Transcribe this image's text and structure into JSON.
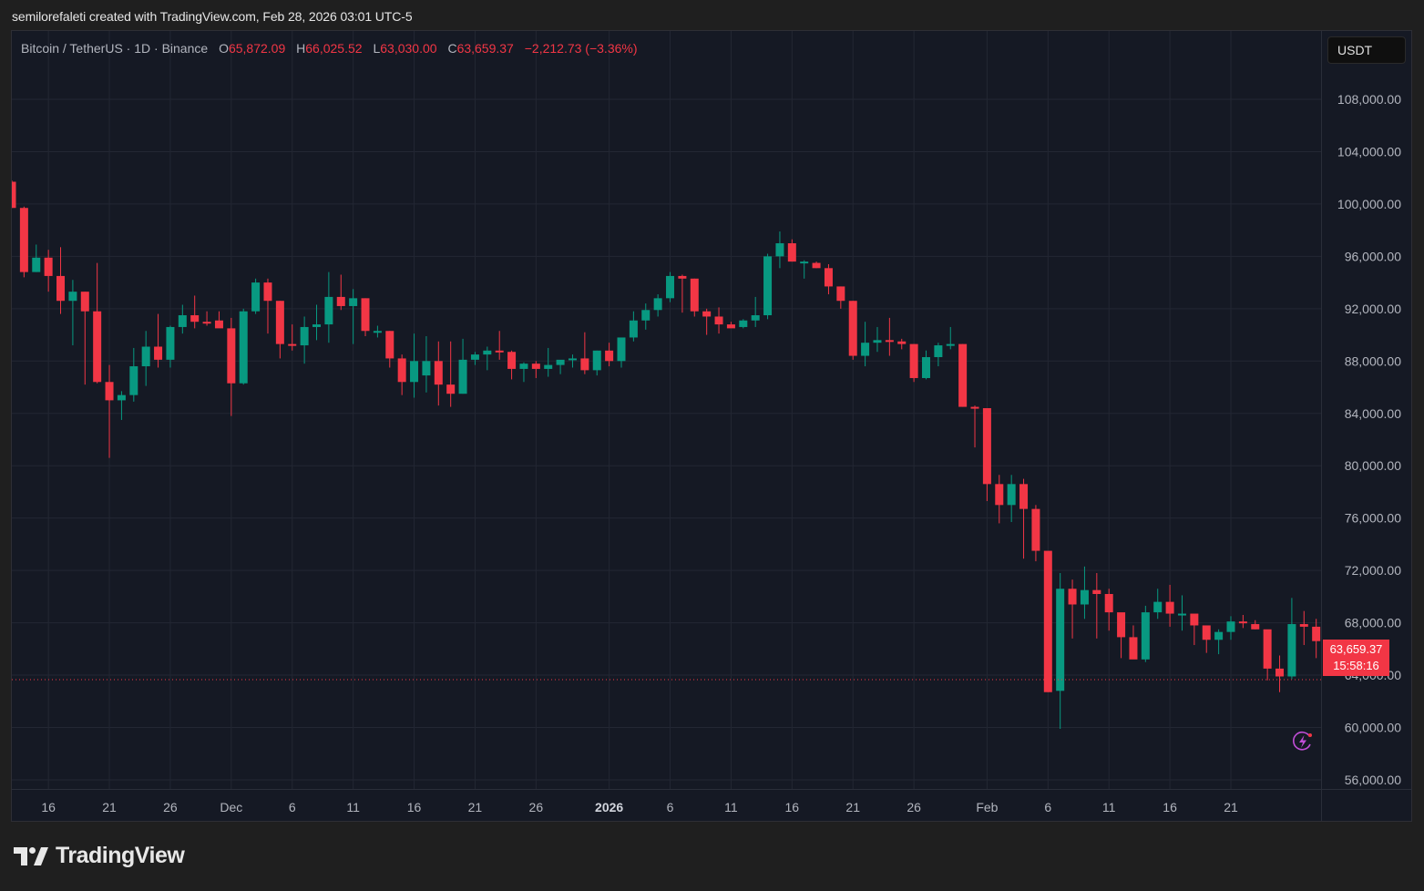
{
  "caption": "semilorefaleti created with TradingView.com, Feb 28, 2026 03:01 UTC-5",
  "legend": {
    "symbol": "Bitcoin / TetherUS · 1D · Binance",
    "o_key": "O",
    "o_val": "65,872.09",
    "h_key": "H",
    "h_val": "66,025.52",
    "l_key": "L",
    "l_val": "63,030.00",
    "c_key": "C",
    "c_val": "63,659.37",
    "change": "−2,212.73 (−3.36%)"
  },
  "unit_button": "USDT",
  "last_price": {
    "price": "63,659.37",
    "countdown": "15:58:16",
    "color": "#f23645"
  },
  "brand": {
    "name": "TradingView"
  },
  "colors": {
    "up": "#089981",
    "down": "#f23645",
    "background": "#151924",
    "grid": "#232733",
    "axis_text": "#b2b5be"
  },
  "chart_data": {
    "type": "candlestick",
    "title": "Bitcoin / TetherUS · 1D · Binance",
    "xlabel": "",
    "ylabel": "USDT",
    "ylim": [
      54500,
      111000
    ],
    "grid": true,
    "y_ticks": [
      56000,
      60000,
      64000,
      68000,
      72000,
      76000,
      80000,
      84000,
      88000,
      92000,
      96000,
      100000,
      104000,
      108000
    ],
    "y_tick_labels": [
      "56,000.00",
      "60,000.00",
      "64,000.00",
      "68,000.00",
      "72,000.00",
      "76,000.00",
      "80,000.00",
      "84,000.00",
      "88,000.00",
      "92,000.00",
      "96,000.00",
      "100,000.00",
      "104,000.00",
      "108,000.00"
    ],
    "x_ticks": [
      {
        "label": "16",
        "index": 3
      },
      {
        "label": "21",
        "index": 8
      },
      {
        "label": "26",
        "index": 13
      },
      {
        "label": "Dec",
        "index": 18
      },
      {
        "label": "6",
        "index": 23
      },
      {
        "label": "11",
        "index": 28
      },
      {
        "label": "16",
        "index": 33
      },
      {
        "label": "21",
        "index": 38
      },
      {
        "label": "26",
        "index": 43
      },
      {
        "label": "2026",
        "index": 49,
        "bold": true
      },
      {
        "label": "6",
        "index": 54
      },
      {
        "label": "11",
        "index": 59
      },
      {
        "label": "16",
        "index": 64
      },
      {
        "label": "21",
        "index": 69
      },
      {
        "label": "26",
        "index": 74
      },
      {
        "label": "Feb",
        "index": 80
      },
      {
        "label": "6",
        "index": 85
      },
      {
        "label": "11",
        "index": 90
      },
      {
        "label": "16",
        "index": 95
      },
      {
        "label": "21",
        "index": 100
      }
    ],
    "start_date": "Nov 13",
    "end_date": "Feb 28",
    "ohlc": [
      [
        101700,
        101800,
        99700,
        99700
      ],
      [
        99700,
        99800,
        94400,
        94800
      ],
      [
        94800,
        96900,
        94800,
        95900
      ],
      [
        95900,
        96500,
        93300,
        94500
      ],
      [
        94500,
        96700,
        91600,
        92600
      ],
      [
        92600,
        94200,
        89200,
        93300
      ],
      [
        93300,
        93300,
        86200,
        91800
      ],
      [
        91800,
        95500,
        86300,
        86400
      ],
      [
        86400,
        87700,
        80600,
        85000
      ],
      [
        85000,
        85700,
        83500,
        85400
      ],
      [
        85400,
        89000,
        84900,
        87600
      ],
      [
        87600,
        90300,
        86100,
        89100
      ],
      [
        89100,
        91600,
        87500,
        88100
      ],
      [
        88100,
        90700,
        87500,
        90600
      ],
      [
        90600,
        92300,
        90100,
        91500
      ],
      [
        91500,
        93000,
        90500,
        91000
      ],
      [
        91000,
        91800,
        90700,
        90900
      ],
      [
        91100,
        91800,
        90600,
        90500
      ],
      [
        90500,
        91300,
        83800,
        86300
      ],
      [
        86300,
        92000,
        86200,
        91800
      ],
      [
        91800,
        94300,
        91600,
        94000
      ],
      [
        94000,
        94300,
        90100,
        92600
      ],
      [
        92600,
        92600,
        88200,
        89300
      ],
      [
        89300,
        90800,
        88800,
        89200
      ],
      [
        89200,
        91400,
        87800,
        90600
      ],
      [
        90600,
        92300,
        89600,
        90800
      ],
      [
        90800,
        94800,
        89400,
        92900
      ],
      [
        92900,
        94600,
        91900,
        92200
      ],
      [
        92200,
        93500,
        89300,
        92800
      ],
      [
        92800,
        92800,
        89900,
        90300
      ],
      [
        90300,
        90700,
        89800,
        90300
      ],
      [
        90300,
        90300,
        87500,
        88200
      ],
      [
        88200,
        88500,
        85400,
        86400
      ],
      [
        86400,
        90100,
        85200,
        88000
      ],
      [
        86900,
        89900,
        85600,
        88000
      ],
      [
        88000,
        89500,
        84600,
        86200
      ],
      [
        86200,
        89500,
        84500,
        85500
      ],
      [
        85500,
        89700,
        85500,
        88100
      ],
      [
        88100,
        88700,
        87700,
        88500
      ],
      [
        88500,
        89100,
        87300,
        88800
      ],
      [
        88800,
        90300,
        88100,
        88700
      ],
      [
        88700,
        88800,
        86600,
        87400
      ],
      [
        87400,
        87900,
        86400,
        87800
      ],
      [
        87800,
        88000,
        86700,
        87400
      ],
      [
        87400,
        89000,
        86800,
        87700
      ],
      [
        87700,
        88000,
        87000,
        88100
      ],
      [
        88100,
        88500,
        87500,
        88200
      ],
      [
        88200,
        90200,
        87000,
        87300
      ],
      [
        87300,
        88800,
        86900,
        88800
      ],
      [
        88800,
        89400,
        87600,
        88000
      ],
      [
        88000,
        89800,
        87500,
        89800
      ],
      [
        89800,
        91800,
        89500,
        91100
      ],
      [
        91100,
        92400,
        90400,
        91900
      ],
      [
        91900,
        93100,
        91400,
        92800
      ],
      [
        92800,
        94800,
        92500,
        94500
      ],
      [
        94500,
        94600,
        91700,
        94300
      ],
      [
        94300,
        94300,
        91400,
        91800
      ],
      [
        91800,
        92000,
        90000,
        91400
      ],
      [
        91400,
        92100,
        90100,
        90800
      ],
      [
        90800,
        91000,
        90600,
        90500
      ],
      [
        90600,
        91200,
        90500,
        91100
      ],
      [
        91100,
        92900,
        90600,
        91500
      ],
      [
        91500,
        96200,
        91200,
        96000
      ],
      [
        96000,
        97900,
        95100,
        97000
      ],
      [
        97000,
        97300,
        95600,
        95600
      ],
      [
        95600,
        95700,
        94300,
        95600
      ],
      [
        95500,
        95600,
        95100,
        95100
      ],
      [
        95100,
        95400,
        93100,
        93700
      ],
      [
        93700,
        93700,
        92000,
        92600
      ],
      [
        92600,
        92600,
        88100,
        88400
      ],
      [
        88400,
        91000,
        87600,
        89400
      ],
      [
        89400,
        90600,
        88700,
        89600
      ],
      [
        89600,
        91300,
        88400,
        89500
      ],
      [
        89500,
        89700,
        88900,
        89300
      ],
      [
        89300,
        89300,
        86400,
        86700
      ],
      [
        86700,
        88800,
        86600,
        88300
      ],
      [
        88300,
        89400,
        87600,
        89200
      ],
      [
        89300,
        90600,
        88900,
        89300
      ],
      [
        89300,
        89300,
        84500,
        84500
      ],
      [
        84500,
        84600,
        81400,
        84400
      ],
      [
        84400,
        84400,
        77300,
        78600
      ],
      [
        78600,
        79300,
        75600,
        77000
      ],
      [
        77000,
        79300,
        75700,
        78600
      ],
      [
        78600,
        79000,
        72900,
        76700
      ],
      [
        76700,
        77000,
        72700,
        73500
      ],
      [
        73500,
        73300,
        62700,
        62700
      ],
      [
        62800,
        71800,
        59900,
        70600
      ],
      [
        70600,
        71300,
        66800,
        69400
      ],
      [
        69400,
        72300,
        68300,
        70500
      ],
      [
        70500,
        71800,
        66800,
        70200
      ],
      [
        70200,
        70600,
        67400,
        68800
      ],
      [
        68800,
        68300,
        65300,
        66900
      ],
      [
        66900,
        67800,
        65400,
        65200
      ],
      [
        65200,
        69300,
        65000,
        68800
      ],
      [
        68800,
        70600,
        68300,
        69600
      ],
      [
        69600,
        70900,
        67700,
        68700
      ],
      [
        68700,
        70100,
        67400,
        68700
      ],
      [
        68700,
        68400,
        66300,
        67800
      ],
      [
        67800,
        67700,
        65700,
        66700
      ],
      [
        66700,
        67500,
        65600,
        67300
      ],
      [
        67300,
        68500,
        66700,
        68100
      ],
      [
        68100,
        68600,
        67600,
        68000
      ],
      [
        67900,
        68200,
        67500,
        67500
      ],
      [
        67500,
        67400,
        63600,
        64500
      ],
      [
        64500,
        65500,
        62700,
        63900
      ],
      [
        63900,
        69900,
        63700,
        67900
      ],
      [
        67900,
        68900,
        66300,
        67700
      ],
      [
        67700,
        68300,
        65300,
        66600
      ],
      [
        65872,
        66025,
        63030,
        63659
      ]
    ]
  }
}
